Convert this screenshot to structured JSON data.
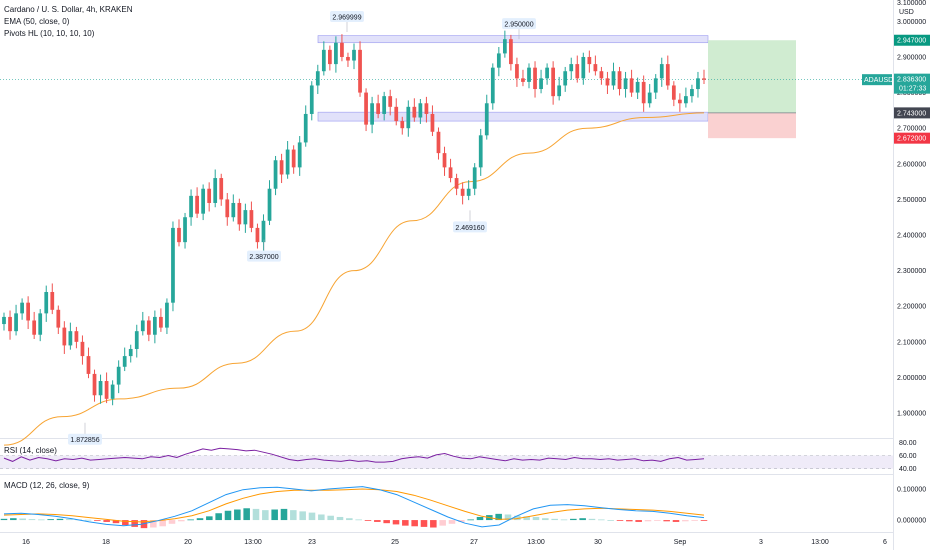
{
  "legend": {
    "title": "Cardano / U. S. Dollar, 4h, KRAKEN",
    "ema": "EMA (50, close, 0)",
    "pivots": "Pivots HL (10, 10, 10, 10)"
  },
  "panes": {
    "rsi_label": "RSI (14, close)",
    "macd_label": "MACD (12, 26, close, 9)"
  },
  "axis": {
    "currency": "USD",
    "top_partial": "3.100000",
    "badges": {
      "target": "2.947000",
      "symbol": "ADAUSD",
      "price": "2.836300",
      "countdown": "01:27:33",
      "entry": "2.743000",
      "stop": "2.672000"
    }
  },
  "colors": {
    "up": "#26a69a",
    "down": "#ef5350",
    "ema": "#f7a433",
    "rsi": "#7b1fa2",
    "macd": "#2196f3",
    "signal": "#ff9800",
    "zone": "#c9c9f5",
    "profit": "#c8e9c9",
    "loss": "#f9c9c9",
    "target_badge": "#089981",
    "stop_badge": "#f23645",
    "entry_badge": "#434651"
  },
  "chart_data": [
    {
      "type": "candlestick",
      "title": "Cardano / U. S. Dollar, 4h, KRAKEN",
      "ylim": [
        1.83,
        3.06
      ],
      "y_ticks": [
        "1.900000",
        "2.000000",
        "2.100000",
        "2.200000",
        "2.300000",
        "2.400000",
        "2.500000",
        "2.600000",
        "2.700000",
        "2.800000",
        "2.900000",
        "3.000000"
      ],
      "x_ticks": [
        "16",
        "18",
        "20",
        "13:00",
        "23",
        "25",
        "27",
        "13:00",
        "30",
        "Sep",
        "3",
        "13:00",
        "6"
      ],
      "pivots": [
        {
          "label": "1.872856",
          "value": 1.872856,
          "kind": "low"
        },
        {
          "label": "2.387000",
          "value": 2.387,
          "kind": "low"
        },
        {
          "label": "2.969999",
          "value": 2.969999,
          "kind": "high"
        },
        {
          "label": "2.469160",
          "value": 2.46916,
          "kind": "low"
        },
        {
          "label": "2.950000",
          "value": 2.95,
          "kind": "high"
        }
      ],
      "resistance_zone": [
        2.94,
        2.96
      ],
      "support_zone": [
        2.72,
        2.745
      ],
      "position": {
        "target": 2.947,
        "entry": 2.743,
        "stop": 2.672
      },
      "last_price": 2.8363,
      "closes": [
        2.17,
        2.13,
        2.18,
        2.21,
        2.16,
        2.12,
        2.18,
        2.24,
        2.19,
        2.14,
        2.09,
        2.13,
        2.1,
        2.06,
        2.01,
        1.95,
        1.99,
        1.94,
        1.98,
        2.03,
        2.06,
        2.08,
        2.13,
        2.16,
        2.12,
        2.17,
        2.14,
        2.21,
        2.42,
        2.38,
        2.45,
        2.51,
        2.46,
        2.53,
        2.49,
        2.56,
        2.5,
        2.45,
        2.49,
        2.43,
        2.47,
        2.42,
        2.38,
        2.44,
        2.53,
        2.61,
        2.57,
        2.64,
        2.59,
        2.66,
        2.74,
        2.82,
        2.86,
        2.92,
        2.88,
        2.94,
        2.9,
        2.89,
        2.92,
        2.8,
        2.71,
        2.77,
        2.74,
        2.79,
        2.76,
        2.72,
        2.7,
        2.76,
        2.73,
        2.77,
        2.74,
        2.69,
        2.63,
        2.59,
        2.56,
        2.53,
        2.51,
        2.53,
        2.59,
        2.68,
        2.77,
        2.87,
        2.91,
        2.95,
        2.88,
        2.84,
        2.83,
        2.87,
        2.81,
        2.84,
        2.87,
        2.79,
        2.82,
        2.86,
        2.88,
        2.84,
        2.9,
        2.88,
        2.86,
        2.84,
        2.82,
        2.86,
        2.81,
        2.84,
        2.8,
        2.83,
        2.77,
        2.8,
        2.84,
        2.88,
        2.82,
        2.78,
        2.77,
        2.79,
        2.81,
        2.84,
        2.836
      ],
      "ema50": [
        1.81,
        1.89,
        1.94,
        1.97,
        2.04,
        2.13,
        2.3,
        2.44,
        2.55,
        2.63,
        2.7,
        2.73,
        2.743
      ]
    },
    {
      "type": "line",
      "title": "RSI (14, close)",
      "ylim": [
        35,
        82
      ],
      "y_ticks": [
        "40.00",
        "60.00",
        "80.00"
      ],
      "band": [
        40,
        60
      ],
      "values": [
        56,
        51,
        58,
        53,
        57,
        55,
        52,
        55,
        54,
        56,
        53,
        54,
        55,
        56,
        57,
        56,
        55,
        58,
        57,
        60,
        57,
        62,
        66,
        70,
        68,
        71,
        70,
        69,
        67,
        68,
        65,
        62,
        58,
        54,
        52,
        54,
        55,
        53,
        52,
        51,
        53,
        51,
        52,
        50,
        50,
        51,
        55,
        57,
        58,
        56,
        61,
        63,
        59,
        56,
        55,
        58,
        56,
        54,
        52,
        55,
        53,
        54,
        53,
        56,
        55,
        54,
        57,
        55,
        55,
        54,
        55,
        53,
        54,
        55,
        52,
        53,
        51,
        55,
        57,
        53,
        54,
        55
      ]
    },
    {
      "type": "bar+line",
      "title": "MACD (12, 26, close, 9)",
      "ylim": [
        -0.032,
        0.142
      ],
      "y_ticks": [
        "0.000000",
        "0.100000"
      ],
      "histogram": [
        0.004,
        0.006,
        0.005,
        0.003,
        0.002,
        0.003,
        0.004,
        0.003,
        0.002,
        0.001,
        -0.002,
        -0.006,
        -0.01,
        -0.016,
        -0.022,
        -0.026,
        -0.024,
        -0.02,
        -0.012,
        -0.004,
        0.002,
        0.006,
        0.012,
        0.022,
        0.03,
        0.034,
        0.038,
        0.036,
        0.032,
        0.034,
        0.036,
        0.032,
        0.028,
        0.024,
        0.018,
        0.014,
        0.01,
        0.006,
        0.002,
        -0.002,
        -0.006,
        -0.01,
        -0.014,
        -0.018,
        -0.02,
        -0.022,
        -0.024,
        -0.018,
        -0.012,
        -0.006,
        0.002,
        0.01,
        0.016,
        0.02,
        0.018,
        0.014,
        0.012,
        0.01,
        0.006,
        0.004,
        0.002,
        0.004,
        0.006,
        0.004,
        0.002,
        0.0,
        -0.002,
        -0.004,
        -0.006,
        -0.004,
        -0.002,
        -0.004,
        -0.006,
        -0.004,
        -0.002,
        -0.002
      ],
      "macd": [
        0.02,
        0.022,
        0.018,
        0.012,
        0.004,
        -0.006,
        -0.014,
        -0.018,
        -0.014,
        -0.002,
        0.012,
        0.03,
        0.056,
        0.082,
        0.098,
        0.104,
        0.106,
        0.1,
        0.094,
        0.1,
        0.104,
        0.108,
        0.098,
        0.082,
        0.058,
        0.034,
        0.01,
        -0.01,
        -0.022,
        -0.016,
        0.012,
        0.036,
        0.048,
        0.05,
        0.046,
        0.04,
        0.034,
        0.03,
        0.028,
        0.022,
        0.014,
        0.008
      ],
      "signal": [
        0.016,
        0.018,
        0.02,
        0.018,
        0.014,
        0.008,
        0.002,
        -0.004,
        -0.006,
        -0.002,
        0.004,
        0.014,
        0.03,
        0.052,
        0.07,
        0.084,
        0.092,
        0.096,
        0.096,
        0.096,
        0.098,
        0.1,
        0.098,
        0.092,
        0.08,
        0.064,
        0.046,
        0.028,
        0.012,
        0.002,
        0.004,
        0.014,
        0.024,
        0.032,
        0.036,
        0.038,
        0.036,
        0.034,
        0.032,
        0.028,
        0.022,
        0.016
      ]
    }
  ]
}
